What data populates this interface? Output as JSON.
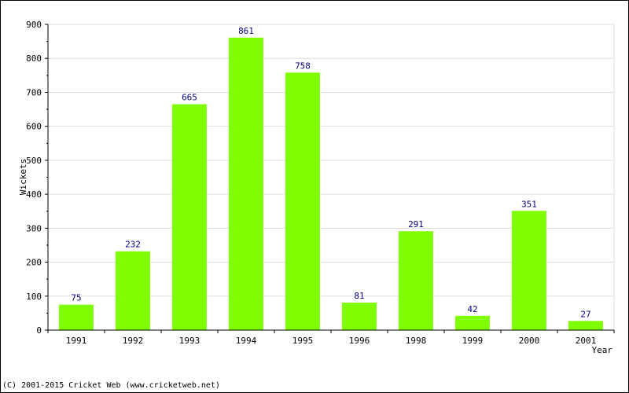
{
  "chart_data": {
    "type": "bar",
    "categories": [
      "1991",
      "1992",
      "1993",
      "1994",
      "1995",
      "1996",
      "1998",
      "1999",
      "2000",
      "2001"
    ],
    "values": [
      75,
      232,
      665,
      861,
      758,
      81,
      291,
      42,
      351,
      27
    ],
    "title": "",
    "xlabel": "Year",
    "ylabel": "Wickets",
    "ylim": [
      0,
      900
    ],
    "yticks": [
      0,
      100,
      200,
      300,
      400,
      500,
      600,
      700,
      800,
      900
    ],
    "grid": true,
    "legend": "none",
    "colors": {
      "bar": "#7fff00",
      "value_label": "#000080",
      "grid": "#dddddd",
      "axis": "#000000"
    }
  },
  "footer": {
    "copyright": "(C) 2001-2015 Cricket Web (www.cricketweb.net)"
  }
}
